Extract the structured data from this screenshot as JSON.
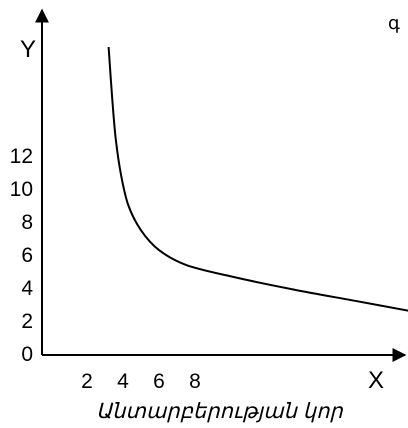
{
  "corner_mark": "գ",
  "chart_data": {
    "type": "line",
    "xlabel": "X",
    "ylabel": "Y",
    "x_title": "Անտարբերության կոր",
    "x_ticks": [
      "2",
      "4",
      "6",
      "8"
    ],
    "y_ticks": [
      "0",
      "2",
      "4",
      "6",
      "8",
      "10",
      "12"
    ],
    "grid": false,
    "legend": "none",
    "series": [
      {
        "x": [
          3.2,
          3.4,
          3.6,
          3.9,
          4.3,
          5.0,
          6.0,
          7.5,
          10.0,
          13.5,
          17.0,
          20.5
        ],
        "y": [
          18.6,
          15.5,
          13.0,
          10.8,
          9.0,
          7.5,
          6.3,
          5.4,
          4.7,
          3.9,
          3.2,
          2.5
        ]
      }
    ]
  }
}
